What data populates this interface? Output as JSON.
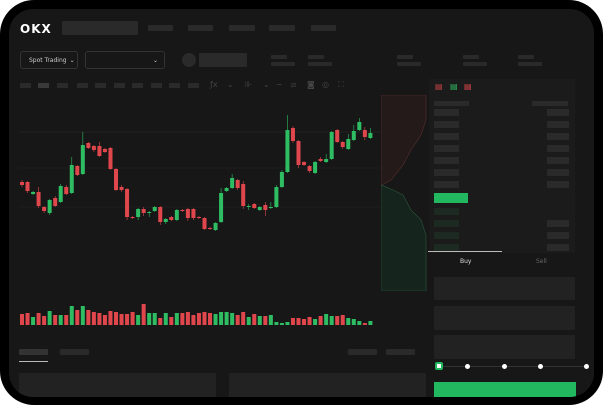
{
  "brand": {
    "logo": "OKX"
  },
  "header": {
    "market_selector": "Spot Trading",
    "dropdown_icon": "chevron-down-icon"
  },
  "colors": {
    "up": "#2ebd63",
    "down": "#e0474c",
    "accent": "#22b85f",
    "background": "#171717"
  },
  "toolbar": {
    "icons": [
      "indicator-icon",
      "chevron-down-icon",
      "chart-type-icon",
      "chevron-down-icon",
      "line-icon",
      "ruler-icon",
      "camera-icon",
      "settings-icon",
      "fullscreen-icon"
    ]
  },
  "orderbook": {
    "view_icons": [
      "both-sides-icon",
      "bids-only-icon",
      "asks-only-icon"
    ]
  },
  "trade": {
    "tabs": [
      "Buy",
      "Sell"
    ],
    "active_tab": "Buy",
    "slider_percent": 0
  },
  "candles": [
    [
      118,
      115,
      120,
      113
    ],
    [
      118,
      109,
      119,
      107
    ],
    [
      106,
      108,
      109,
      105
    ],
    [
      108,
      94,
      113,
      92
    ],
    [
      93,
      89,
      94,
      87
    ],
    [
      87,
      100,
      101,
      85
    ],
    [
      102,
      94,
      104,
      93
    ],
    [
      98,
      114,
      116,
      97
    ],
    [
      113,
      106,
      115,
      105
    ],
    [
      107,
      135,
      143,
      106
    ],
    [
      134,
      125,
      135,
      124
    ],
    [
      126,
      155,
      168,
      125
    ],
    [
      157,
      152,
      158,
      151
    ],
    [
      154,
      150,
      155,
      148
    ],
    [
      154,
      144,
      158,
      143
    ],
    [
      151,
      148,
      152,
      147
    ],
    [
      152,
      131,
      153,
      130
    ],
    [
      131,
      110,
      132,
      109
    ],
    [
      113,
      110,
      115,
      108
    ],
    [
      111,
      83,
      112,
      80
    ],
    [
      83,
      82,
      84,
      81
    ],
    [
      83,
      91,
      92,
      80
    ],
    [
      91,
      87,
      93,
      84
    ],
    [
      87,
      88,
      89,
      83
    ],
    [
      89,
      93,
      94,
      88
    ],
    [
      93,
      78,
      94,
      75
    ],
    [
      78,
      81,
      82,
      76
    ],
    [
      83,
      80,
      84,
      79
    ],
    [
      80,
      90,
      91,
      79
    ],
    [
      90,
      89,
      91,
      88
    ],
    [
      91,
      82,
      92,
      79
    ],
    [
      91,
      82,
      92,
      80
    ],
    [
      83,
      82,
      84,
      81
    ],
    [
      82,
      71,
      83,
      70
    ],
    [
      72,
      71,
      73,
      70
    ],
    [
      70,
      77,
      78,
      69
    ],
    [
      78,
      107,
      112,
      77
    ],
    [
      109,
      112,
      113,
      108
    ],
    [
      112,
      122,
      126,
      111
    ],
    [
      120,
      112,
      121,
      110
    ],
    [
      116,
      94,
      119,
      91
    ],
    [
      93,
      94,
      96,
      90
    ],
    [
      96,
      92,
      97,
      91
    ],
    [
      90,
      93,
      94,
      89
    ],
    [
      95,
      90,
      98,
      84
    ],
    [
      92,
      93,
      98,
      91
    ],
    [
      93,
      113,
      115,
      92
    ],
    [
      113,
      128,
      130,
      112
    ],
    [
      128,
      170,
      185,
      127
    ],
    [
      172,
      159,
      174,
      157
    ],
    [
      159,
      135,
      160,
      132
    ],
    [
      138,
      135,
      139,
      134
    ],
    [
      134,
      129,
      135,
      127
    ],
    [
      127,
      138,
      139,
      126
    ],
    [
      141,
      139,
      143,
      138
    ],
    [
      138,
      141,
      146,
      137
    ],
    [
      141,
      168,
      169,
      140
    ],
    [
      170,
      158,
      171,
      157
    ],
    [
      158,
      153,
      159,
      151
    ],
    [
      151,
      161,
      166,
      150
    ],
    [
      160,
      169,
      175,
      159
    ],
    [
      170,
      178,
      182,
      169
    ],
    [
      170,
      163,
      173,
      160
    ],
    [
      162,
      167,
      172,
      161
    ]
  ],
  "volumes": [
    11,
    12,
    8,
    12,
    9,
    14,
    10,
    10,
    10,
    19,
    15,
    19,
    15,
    13,
    12,
    10,
    14,
    13,
    11,
    11,
    13,
    10,
    21,
    12,
    12,
    7,
    12,
    8,
    12,
    12,
    13,
    10,
    12,
    13,
    12,
    11,
    13,
    13,
    12,
    10,
    13,
    8,
    11,
    9,
    9,
    10,
    3,
    2,
    3,
    7,
    7,
    6,
    8,
    6,
    9,
    11,
    9,
    9,
    10,
    7,
    6,
    4,
    2,
    4
  ]
}
